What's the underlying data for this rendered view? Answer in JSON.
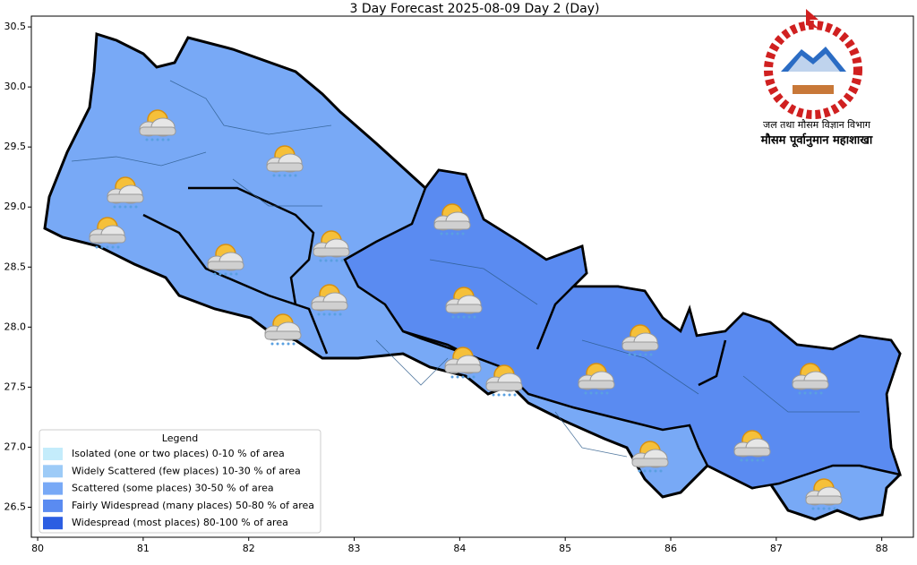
{
  "title": "3 Day Forecast 2025-08-09 Day 2 (Day)",
  "map": {
    "xlim": [
      79.94,
      88.3
    ],
    "ylim": [
      26.25,
      30.59
    ],
    "xticks": [
      80,
      81,
      82,
      83,
      84,
      85,
      86,
      87,
      88
    ],
    "yticks": [
      {
        "value": 26.5,
        "label": "26.5"
      },
      {
        "value": 27,
        "label": "27.0"
      },
      {
        "value": 27.5,
        "label": "27.5"
      },
      {
        "value": 28,
        "label": "28.0"
      },
      {
        "value": 28.5,
        "label": "28.5"
      },
      {
        "value": 29,
        "label": "29.0"
      },
      {
        "value": 29.5,
        "label": "29.5"
      },
      {
        "value": 30,
        "label": "30.0"
      },
      {
        "value": 30.5,
        "label": "30.5"
      }
    ]
  },
  "legend": {
    "title": "Legend",
    "items": [
      {
        "label": "Isolated (one or two places)  0-10 % of area",
        "color": "#c4ecfb"
      },
      {
        "label": "Widely Scattered (few places) 10-30 % of area",
        "color": "#9dcbf7"
      },
      {
        "label": "Scattered (some places) 30-50  % of area",
        "color": "#78a9f6"
      },
      {
        "label": "Fairly Widespread (many places) 50-80 % of area",
        "color": "#5a8bf1"
      },
      {
        "label": "Widespread (most places) 80-100 % of area",
        "color": "#2c5ee2"
      }
    ]
  },
  "logo": {
    "line1": "जल तथा मौसम विज्ञान विभाग",
    "line2": "मौसम पूर्वानुमान महाशाखा"
  }
}
